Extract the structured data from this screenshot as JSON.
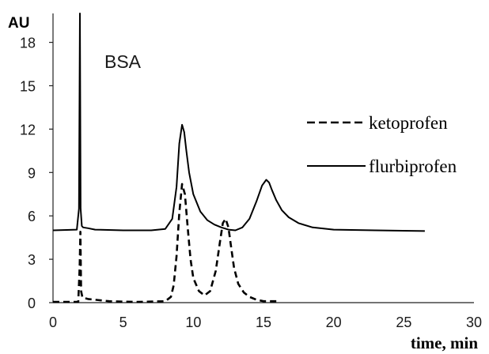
{
  "chart_data": {
    "type": "line",
    "title": "",
    "ylabel": "AU",
    "xlabel": "time, min",
    "annotation": "BSA",
    "xlim": [
      0,
      30
    ],
    "ylim": [
      0,
      20
    ],
    "x_ticks": [
      "0",
      "5",
      "10",
      "15",
      "20",
      "25",
      "30"
    ],
    "y_ticks": [
      "0",
      "3",
      "6",
      "9",
      "12",
      "15",
      "18"
    ],
    "x_tick_values": [
      0,
      5,
      10,
      15,
      20,
      25,
      30
    ],
    "y_tick_values": [
      0,
      3,
      6,
      9,
      12,
      15,
      18
    ],
    "grid": false,
    "legend_position": "right",
    "series": [
      {
        "name": "ketoprofen",
        "style": "dashed",
        "color": "#000000",
        "x": [
          0,
          1.8,
          1.9,
          1.95,
          2.0,
          2.1,
          2.5,
          4,
          6,
          8,
          8.4,
          8.6,
          8.8,
          9.0,
          9.2,
          9.4,
          9.6,
          9.8,
          10.0,
          10.4,
          10.8,
          11.2,
          11.6,
          11.9,
          12.1,
          12.3,
          12.5,
          12.7,
          12.9,
          13.2,
          13.6,
          14.0,
          14.5,
          15.0,
          16.0
        ],
        "y": [
          0.05,
          0.05,
          2.5,
          4.9,
          0.8,
          0.35,
          0.25,
          0.1,
          0.05,
          0.1,
          0.4,
          1.2,
          3.2,
          6.2,
          8.2,
          7.5,
          5.2,
          3.0,
          1.7,
          0.8,
          0.5,
          0.8,
          2.2,
          4.2,
          5.5,
          5.8,
          5.2,
          3.8,
          2.4,
          1.3,
          0.7,
          0.4,
          0.2,
          0.1,
          0.1
        ]
      },
      {
        "name": "flurbiprofen",
        "style": "solid",
        "color": "#000000",
        "x": [
          0,
          1.7,
          1.85,
          1.92,
          1.97,
          2.05,
          2.15,
          2.5,
          3,
          5,
          7,
          8.0,
          8.5,
          8.8,
          9.0,
          9.2,
          9.35,
          9.5,
          9.7,
          10.0,
          10.5,
          11.0,
          11.5,
          12.0,
          12.5,
          13.0,
          13.5,
          14.0,
          14.5,
          14.9,
          15.2,
          15.4,
          15.6,
          15.9,
          16.3,
          16.8,
          17.5,
          18.5,
          20,
          23,
          26.5
        ],
        "y": [
          5.0,
          5.05,
          6.5,
          20.0,
          6.5,
          5.3,
          5.2,
          5.15,
          5.05,
          5.0,
          5.0,
          5.1,
          5.8,
          8.0,
          11.0,
          12.3,
          11.8,
          10.5,
          9.0,
          7.5,
          6.3,
          5.7,
          5.4,
          5.2,
          5.05,
          5.0,
          5.2,
          5.8,
          7.0,
          8.1,
          8.5,
          8.3,
          7.8,
          7.1,
          6.4,
          5.9,
          5.5,
          5.2,
          5.05,
          5.0,
          4.95
        ]
      }
    ]
  }
}
